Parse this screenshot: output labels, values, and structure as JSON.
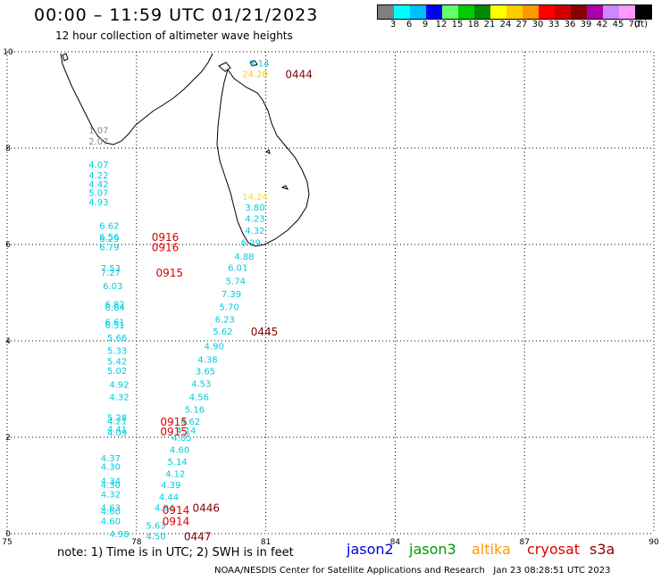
{
  "title": "00:00 – 11:59 UTC 01/21/2023",
  "subtitle": "12 hour collection of altimeter wave heights",
  "legend": {
    "colors": [
      "#7f7f7f",
      "#00ffff",
      "#00bfff",
      "#0000ff",
      "#66ff66",
      "#00cc00",
      "#008800",
      "#ffff00",
      "#ffcc00",
      "#ff9900",
      "#ff0000",
      "#cc0000",
      "#880000",
      "#aa00aa",
      "#cc88ff",
      "#ff99ff",
      "#000000"
    ],
    "labels": [
      "3",
      "6",
      "9",
      "12",
      "15",
      "18",
      "21",
      "24",
      "27",
      "30",
      "33",
      "36",
      "39",
      "42",
      "45",
      "70"
    ],
    "unit": "(ft)"
  },
  "axes": {
    "x_ticks": [
      "75",
      "78",
      "81",
      "84",
      "87",
      "90"
    ],
    "y_ticks": [
      "0",
      "2",
      "4",
      "6",
      "8",
      "10"
    ]
  },
  "observations": [
    {
      "v": "5.14",
      "lon": 80.85,
      "lat": 9.77,
      "c": "#00ccdd"
    },
    {
      "v": "24.20",
      "lon": 80.75,
      "lat": 9.55,
      "c": "#ffcc00"
    },
    {
      "v": "1.07",
      "lon": 77.12,
      "lat": 8.38,
      "c": "#888888"
    },
    {
      "v": "2.07",
      "lon": 77.12,
      "lat": 8.15,
      "c": "#888888"
    },
    {
      "v": "4.07",
      "lon": 77.12,
      "lat": 7.67,
      "c": "#00ccdd"
    },
    {
      "v": "4.22",
      "lon": 77.12,
      "lat": 7.44,
      "c": "#00ccdd"
    },
    {
      "v": "4.42",
      "lon": 77.12,
      "lat": 7.26,
      "c": "#00ccdd"
    },
    {
      "v": "5.07",
      "lon": 77.12,
      "lat": 7.08,
      "c": "#00ccdd"
    },
    {
      "v": "4.93",
      "lon": 77.12,
      "lat": 6.89,
      "c": "#00ccdd"
    },
    {
      "v": "6.62",
      "lon": 77.37,
      "lat": 6.4,
      "c": "#00ccdd"
    },
    {
      "v": "6.56",
      "lon": 77.37,
      "lat": 6.17,
      "c": "#00ccdd"
    },
    {
      "v": "6.29",
      "lon": 77.37,
      "lat": 6.13,
      "c": "#00ccdd"
    },
    {
      "v": "6.79",
      "lon": 77.37,
      "lat": 5.95,
      "c": "#00ccdd"
    },
    {
      "v": "7.53",
      "lon": 77.4,
      "lat": 5.52,
      "c": "#00ccdd"
    },
    {
      "v": "7.27",
      "lon": 77.4,
      "lat": 5.43,
      "c": "#00ccdd"
    },
    {
      "v": "6.03",
      "lon": 77.45,
      "lat": 5.15,
      "c": "#00ccdd"
    },
    {
      "v": "6.82",
      "lon": 77.5,
      "lat": 4.77,
      "c": "#00ccdd"
    },
    {
      "v": "6.64",
      "lon": 77.5,
      "lat": 4.7,
      "c": "#00ccdd"
    },
    {
      "v": "6.61",
      "lon": 77.5,
      "lat": 4.4,
      "c": "#00ccdd"
    },
    {
      "v": "6.51",
      "lon": 77.5,
      "lat": 4.33,
      "c": "#00ccdd"
    },
    {
      "v": "5.66",
      "lon": 77.55,
      "lat": 4.07,
      "c": "#00ccdd"
    },
    {
      "v": "5.33",
      "lon": 77.55,
      "lat": 3.81,
      "c": "#00ccdd"
    },
    {
      "v": "5.42",
      "lon": 77.55,
      "lat": 3.58,
      "c": "#00ccdd"
    },
    {
      "v": "5.02",
      "lon": 77.55,
      "lat": 3.39,
      "c": "#00ccdd"
    },
    {
      "v": "4.92",
      "lon": 77.6,
      "lat": 3.1,
      "c": "#00ccdd"
    },
    {
      "v": "4.32",
      "lon": 77.6,
      "lat": 2.84,
      "c": "#00ccdd"
    },
    {
      "v": "5.28",
      "lon": 77.55,
      "lat": 2.42,
      "c": "#00ccdd"
    },
    {
      "v": "4.21",
      "lon": 77.55,
      "lat": 2.34,
      "c": "#00ccdd"
    },
    {
      "v": "4.41",
      "lon": 77.55,
      "lat": 2.18,
      "c": "#00ccdd"
    },
    {
      "v": "4.09",
      "lon": 77.55,
      "lat": 2.1,
      "c": "#00ccdd"
    },
    {
      "v": "4.37",
      "lon": 77.4,
      "lat": 1.57,
      "c": "#00ccdd"
    },
    {
      "v": "4.30",
      "lon": 77.4,
      "lat": 1.4,
      "c": "#00ccdd"
    },
    {
      "v": "4.34",
      "lon": 77.4,
      "lat": 1.1,
      "c": "#00ccdd"
    },
    {
      "v": "4.30",
      "lon": 77.4,
      "lat": 1.02,
      "c": "#00ccdd"
    },
    {
      "v": "4.32",
      "lon": 77.4,
      "lat": 0.82,
      "c": "#00ccdd"
    },
    {
      "v": "4.63",
      "lon": 77.4,
      "lat": 0.55,
      "c": "#00ccdd"
    },
    {
      "v": "4.60",
      "lon": 77.4,
      "lat": 0.47,
      "c": "#00ccdd"
    },
    {
      "v": "4.60",
      "lon": 77.4,
      "lat": 0.27,
      "c": "#00ccdd"
    },
    {
      "v": "4.98",
      "lon": 77.6,
      "lat": 0.0,
      "c": "#00ccdd"
    },
    {
      "v": "4.50",
      "lon": 78.45,
      "lat": -0.05,
      "c": "#00ccdd"
    },
    {
      "v": "5.63",
      "lon": 78.45,
      "lat": 0.18,
      "c": "#00ccdd"
    },
    {
      "v": "14.24",
      "lon": 80.75,
      "lat": 7.0,
      "c": "#ffdd00"
    },
    {
      "v": "3.80",
      "lon": 80.75,
      "lat": 6.78,
      "c": "#00ccdd"
    },
    {
      "v": "4.23",
      "lon": 80.75,
      "lat": 6.55,
      "c": "#00ccdd"
    },
    {
      "v": "4.32",
      "lon": 80.75,
      "lat": 6.3,
      "c": "#00ccdd"
    },
    {
      "v": "6.29",
      "lon": 80.65,
      "lat": 6.05,
      "c": "#00ccdd"
    },
    {
      "v": "4.88",
      "lon": 80.5,
      "lat": 5.76,
      "c": "#00ccdd"
    },
    {
      "v": "6.01",
      "lon": 80.35,
      "lat": 5.53,
      "c": "#00ccdd"
    },
    {
      "v": "5.74",
      "lon": 80.3,
      "lat": 5.25,
      "c": "#00ccdd"
    },
    {
      "v": "7.39",
      "lon": 80.2,
      "lat": 4.98,
      "c": "#00ccdd"
    },
    {
      "v": "5.70",
      "lon": 80.15,
      "lat": 4.71,
      "c": "#00ccdd"
    },
    {
      "v": "6.23",
      "lon": 80.05,
      "lat": 4.45,
      "c": "#00ccdd"
    },
    {
      "v": "5.62",
      "lon": 80.0,
      "lat": 4.2,
      "c": "#00ccdd"
    },
    {
      "v": "4.90",
      "lon": 79.8,
      "lat": 3.9,
      "c": "#00ccdd"
    },
    {
      "v": "4.38",
      "lon": 79.65,
      "lat": 3.62,
      "c": "#00ccdd"
    },
    {
      "v": "3.65",
      "lon": 79.6,
      "lat": 3.38,
      "c": "#00ccdd"
    },
    {
      "v": "4.53",
      "lon": 79.5,
      "lat": 3.12,
      "c": "#00ccdd"
    },
    {
      "v": "4.56",
      "lon": 79.45,
      "lat": 2.84,
      "c": "#00ccdd"
    },
    {
      "v": "5.16",
      "lon": 79.35,
      "lat": 2.58,
      "c": "#00ccdd"
    },
    {
      "v": "4.62",
      "lon": 79.25,
      "lat": 2.33,
      "c": "#00ccdd"
    },
    {
      "v": "4.14",
      "lon": 79.15,
      "lat": 2.15,
      "c": "#00ccdd"
    },
    {
      "v": "4.85",
      "lon": 79.05,
      "lat": 2.0,
      "c": "#00ccdd"
    },
    {
      "v": "4.60",
      "lon": 79.0,
      "lat": 1.75,
      "c": "#00ccdd"
    },
    {
      "v": "5.14",
      "lon": 78.95,
      "lat": 1.5,
      "c": "#00ccdd"
    },
    {
      "v": "4.12",
      "lon": 78.9,
      "lat": 1.25,
      "c": "#00ccdd"
    },
    {
      "v": "4.39",
      "lon": 78.8,
      "lat": 1.02,
      "c": "#00ccdd"
    },
    {
      "v": "4.44",
      "lon": 78.75,
      "lat": 0.77,
      "c": "#00ccdd"
    },
    {
      "v": "4.94",
      "lon": 78.65,
      "lat": 0.55,
      "c": "#00ccdd"
    }
  ],
  "passes": [
    {
      "t": "0444",
      "lon": 81.45,
      "lat": 9.55,
      "c": "#880000"
    },
    {
      "t": "0916",
      "lon": 78.35,
      "lat": 6.17,
      "c": "#dd0000"
    },
    {
      "t": "0916",
      "lon": 78.35,
      "lat": 5.95,
      "c": "#dd0000"
    },
    {
      "t": "0915",
      "lon": 78.45,
      "lat": 5.43,
      "c": "#dd0000"
    },
    {
      "t": "0445",
      "lon": 80.65,
      "lat": 4.2,
      "c": "#880000"
    },
    {
      "t": "0915",
      "lon": 78.55,
      "lat": 2.33,
      "c": "#dd0000"
    },
    {
      "t": "0915",
      "lon": 78.55,
      "lat": 2.13,
      "c": "#dd0000"
    },
    {
      "t": "0446",
      "lon": 79.3,
      "lat": 0.55,
      "c": "#880000"
    },
    {
      "t": "0914",
      "lon": 78.6,
      "lat": 0.5,
      "c": "#dd0000"
    },
    {
      "t": "0914",
      "lon": 78.6,
      "lat": 0.27,
      "c": "#dd0000"
    },
    {
      "t": "0447",
      "lon": 79.1,
      "lat": -0.05,
      "c": "#880000"
    }
  ],
  "note": "note: 1) Time is in UTC; 2) SWH is in feet",
  "satellites": [
    {
      "name": "jason2",
      "color": "#0000dd"
    },
    {
      "name": "jason3",
      "color": "#009900"
    },
    {
      "name": "altika",
      "color": "#ff9900"
    },
    {
      "name": "cryosat",
      "color": "#dd0000"
    },
    {
      "name": "s3a",
      "color": "#880000"
    }
  ],
  "credit": "NOAA/NESDIS Center for Satellite Applications and Research   Jan 23 08:28:51 UTC 2023"
}
